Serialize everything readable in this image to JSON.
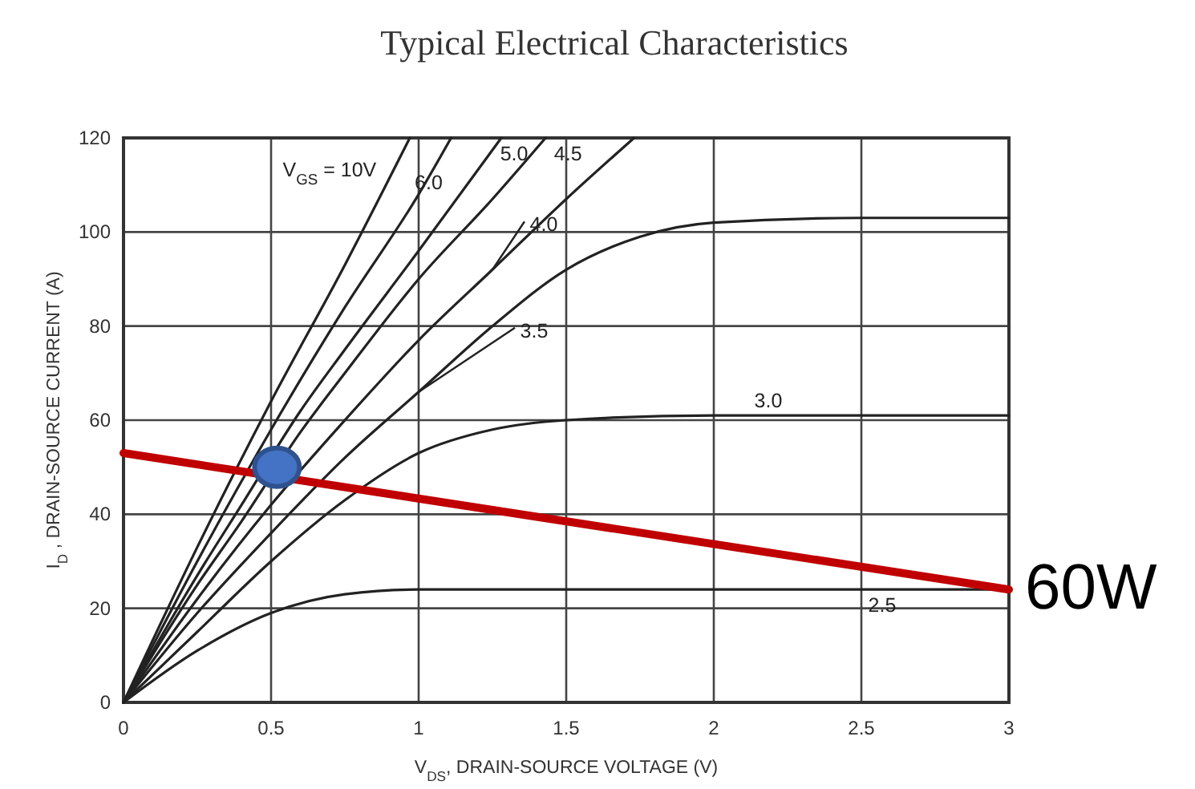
{
  "chart_data": {
    "type": "line",
    "title": "Typical Electrical Characteristics",
    "xlabel": "V$_{DS}$, DRAIN-SOURCE VOLTAGE (V)",
    "ylabel": "I$_{D}$ , DRAIN-SOURCE CURRENT (A)",
    "xlim": [
      0,
      3
    ],
    "ylim": [
      0,
      120
    ],
    "xticks": [
      0,
      0.5,
      1,
      1.5,
      2,
      2.5,
      3
    ],
    "yticks": [
      0,
      20,
      40,
      60,
      80,
      100,
      120
    ],
    "grid": true,
    "series": [
      {
        "name": "V$_{GS}$ = 10V",
        "color": "#222222",
        "x": [
          0,
          0.25,
          0.5,
          0.75,
          0.97
        ],
        "values": [
          0,
          33,
          64,
          93,
          120
        ]
      },
      {
        "name": "6.0",
        "color": "#222222",
        "x": [
          0,
          0.25,
          0.5,
          0.75,
          1.0,
          1.11
        ],
        "values": [
          0,
          30,
          58,
          84,
          108,
          120
        ]
      },
      {
        "name": "5.0",
        "color": "#222222",
        "x": [
          0,
          0.25,
          0.4,
          0.6,
          0.75,
          1.0,
          1.28
        ],
        "values": [
          0,
          27,
          42,
          62,
          75,
          96,
          120
        ]
      },
      {
        "name": "4.5",
        "color": "#222222",
        "x": [
          0,
          0.25,
          0.4,
          0.6,
          0.75,
          1.0,
          1.25,
          1.43
        ],
        "values": [
          0,
          25,
          38.5,
          57.5,
          70,
          90,
          107,
          120
        ]
      },
      {
        "name": "4.0",
        "color": "#222222",
        "x": [
          0,
          0.25,
          0.5,
          0.75,
          1.0,
          1.25,
          1.5,
          1.73
        ],
        "values": [
          0,
          22,
          42,
          60,
          77,
          92,
          107,
          120
        ]
      },
      {
        "name": "3.5",
        "color": "#222222",
        "x": [
          0,
          0.25,
          0.5,
          0.75,
          1.0,
          1.25,
          1.5,
          1.75,
          2.0,
          2.5,
          3.0
        ],
        "values": [
          0,
          19,
          36,
          52,
          66,
          80,
          92,
          99,
          102,
          103,
          103
        ]
      },
      {
        "name": "3.0",
        "color": "#222222",
        "x": [
          0,
          0.25,
          0.5,
          0.75,
          1.0,
          1.25,
          1.5,
          2.0,
          3.0
        ],
        "values": [
          0,
          15,
          30,
          43,
          53,
          58,
          60,
          61,
          61
        ]
      },
      {
        "name": "2.5",
        "color": "#222222",
        "x": [
          0,
          0.25,
          0.5,
          0.75,
          1.0,
          1.5,
          3.0
        ],
        "values": [
          0,
          11,
          19,
          23,
          24,
          24,
          24
        ]
      },
      {
        "color": "#c00000",
        "x": [
          0,
          3
        ],
        "values": [
          53,
          24
        ]
      },
      {
        "type": "scatter",
        "marker": "circle",
        "color": "#4472c4",
        "x": [
          0.52
        ],
        "values": [
          50
        ]
      }
    ],
    "annotations": [
      {
        "text": "60W",
        "x": 3,
        "y": 24
      }
    ]
  }
}
